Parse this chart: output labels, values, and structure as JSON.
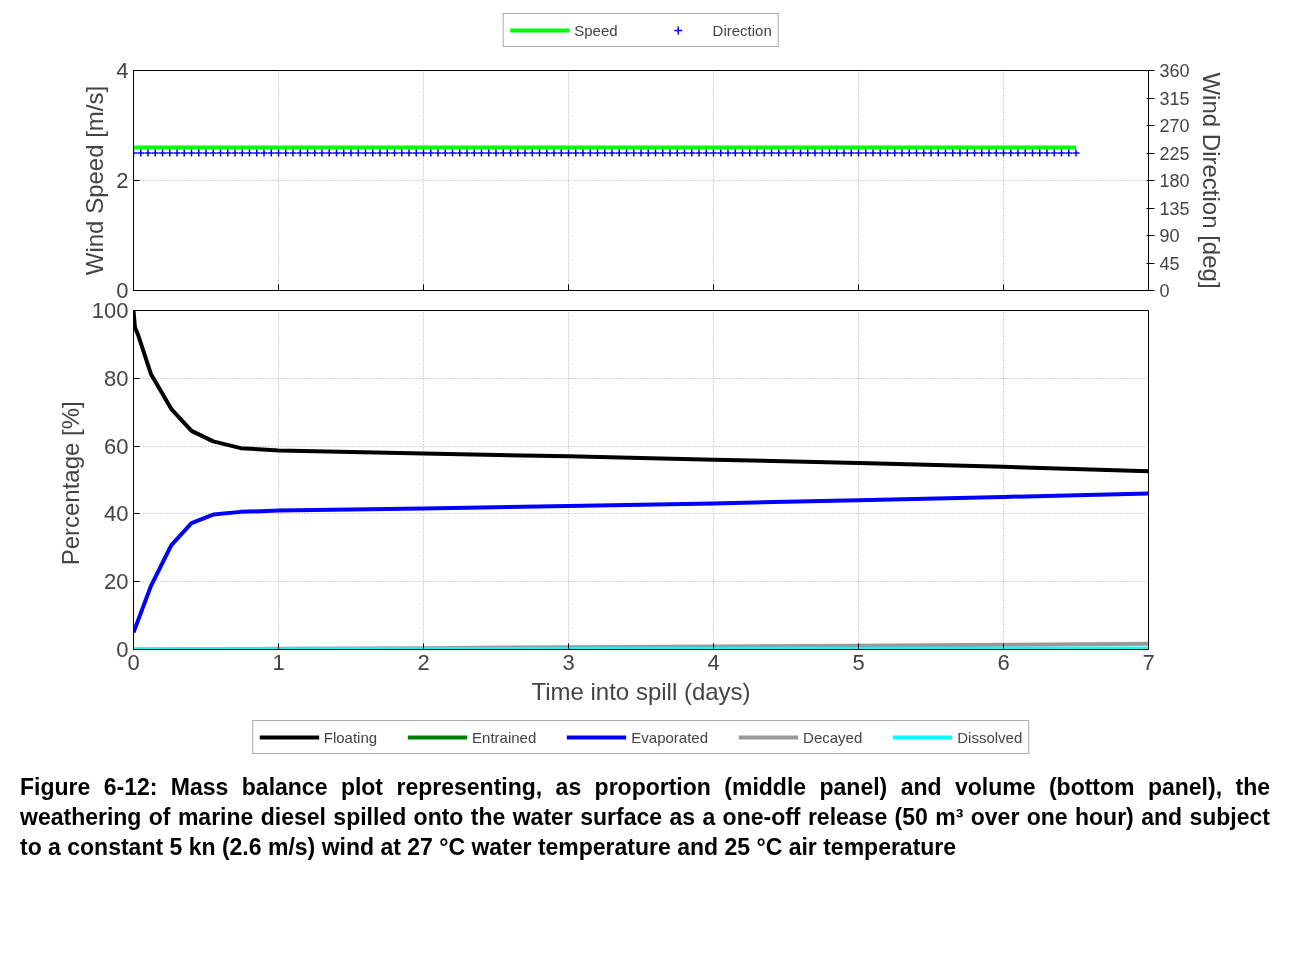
{
  "chart_data": [
    {
      "type": "line",
      "ylabel": "Wind Speed [m/s]",
      "y2label": "Wind Direction [deg]",
      "xlim": [
        0,
        7
      ],
      "xticks": [
        0,
        1,
        2,
        3,
        4,
        5,
        6,
        7
      ],
      "ylim": [
        0,
        4
      ],
      "yticks": [
        0,
        2,
        4
      ],
      "y2lim": [
        0,
        360
      ],
      "y2ticks": [
        0,
        45,
        90,
        135,
        180,
        225,
        270,
        315,
        360
      ],
      "tick_labels": "y",
      "grid": true,
      "legend": "top",
      "series": [
        {
          "name": "Speed",
          "type": "line",
          "color": "#00ff00",
          "x": [
            0,
            6.5
          ],
          "values": [
            2.6,
            2.6
          ]
        },
        {
          "name": "Direction",
          "type": "scatter",
          "marker": "cross",
          "axis": "y2",
          "color": "#0000ff",
          "x": [
            0,
            0.05,
            0.1,
            0.15,
            0.2,
            0.25,
            0.3,
            0.35,
            0.4,
            0.45,
            0.5,
            0.55,
            0.6,
            0.65,
            0.7,
            0.75,
            0.8,
            0.85,
            0.9,
            0.95,
            1,
            1.05,
            1.1,
            1.15,
            1.2,
            1.25,
            1.3,
            1.35,
            1.4,
            1.45,
            1.5,
            1.55,
            1.6,
            1.65,
            1.7,
            1.75,
            1.8,
            1.85,
            1.9,
            1.95,
            2,
            2.05,
            2.1,
            2.15,
            2.2,
            2.25,
            2.3,
            2.35,
            2.4,
            2.45,
            2.5,
            2.55,
            2.6,
            2.65,
            2.7,
            2.75,
            2.8,
            2.85,
            2.9,
            2.95,
            3,
            3.05,
            3.1,
            3.15,
            3.2,
            3.25,
            3.3,
            3.35,
            3.4,
            3.45,
            3.5,
            3.55,
            3.6,
            3.65,
            3.7,
            3.75,
            3.8,
            3.85,
            3.9,
            3.95,
            4,
            4.05,
            4.1,
            4.15,
            4.2,
            4.25,
            4.3,
            4.35,
            4.4,
            4.45,
            4.5,
            4.55,
            4.6,
            4.65,
            4.7,
            4.75,
            4.8,
            4.85,
            4.9,
            4.95,
            5,
            5.05,
            5.1,
            5.15,
            5.2,
            5.25,
            5.3,
            5.35,
            5.4,
            5.45,
            5.5,
            5.55,
            5.6,
            5.65,
            5.7,
            5.75,
            5.8,
            5.85,
            5.9,
            5.95,
            6,
            6.05,
            6.1,
            6.15,
            6.2,
            6.25,
            6.3,
            6.35,
            6.4,
            6.45,
            6.5
          ],
          "values": [
            225,
            225,
            225,
            225,
            225,
            225,
            225,
            225,
            225,
            225,
            225,
            225,
            225,
            225,
            225,
            225,
            225,
            225,
            225,
            225,
            225,
            225,
            225,
            225,
            225,
            225,
            225,
            225,
            225,
            225,
            225,
            225,
            225,
            225,
            225,
            225,
            225,
            225,
            225,
            225,
            225,
            225,
            225,
            225,
            225,
            225,
            225,
            225,
            225,
            225,
            225,
            225,
            225,
            225,
            225,
            225,
            225,
            225,
            225,
            225,
            225,
            225,
            225,
            225,
            225,
            225,
            225,
            225,
            225,
            225,
            225,
            225,
            225,
            225,
            225,
            225,
            225,
            225,
            225,
            225,
            225,
            225,
            225,
            225,
            225,
            225,
            225,
            225,
            225,
            225,
            225,
            225,
            225,
            225,
            225,
            225,
            225,
            225,
            225,
            225,
            225,
            225,
            225,
            225,
            225,
            225,
            225,
            225,
            225,
            225,
            225,
            225,
            225,
            225,
            225,
            225,
            225,
            225,
            225,
            225,
            225,
            225,
            225,
            225,
            225,
            225,
            225,
            225,
            225,
            225,
            225
          ]
        }
      ]
    },
    {
      "type": "line",
      "xlabel": "Time into spill (days)",
      "ylabel": "Percentage  [%]",
      "xlim": [
        0,
        7
      ],
      "xticks": [
        0,
        1,
        2,
        3,
        4,
        5,
        6,
        7
      ],
      "ylim": [
        0,
        100
      ],
      "yticks": [
        0,
        20,
        40,
        60,
        80,
        100
      ],
      "grid": true,
      "legend": "bottom",
      "annotations": [
        "Figure 6-12: Mass balance plot representing, as proportion (middle panel) and volume (bottom panel), the weathering of marine diesel spilled onto the water surface as a one-off release (50 m³ over one hour) and subject to a constant 5 kn (2.6 m/s) wind at 27 °C water temperature and 25 °C air temperature"
      ],
      "series": [
        {
          "name": "Floating",
          "color": "#000000",
          "x": [
            0,
            0.01,
            0.03,
            0.12,
            0.26,
            0.4,
            0.55,
            0.74,
            1,
            2,
            3,
            4,
            5,
            6,
            7
          ],
          "values": [
            100,
            95,
            93,
            81.3,
            71,
            64.5,
            61.4,
            59.4,
            58.7,
            57.8,
            57,
            56,
            55,
            53.9,
            52.6
          ]
        },
        {
          "name": "Entrained",
          "color": "#008000",
          "values": [
            null
          ]
        },
        {
          "name": "Evaporated",
          "color": "#0000ff",
          "x": [
            0,
            0.12,
            0.26,
            0.4,
            0.55,
            0.74,
            1,
            2,
            3,
            4,
            5,
            6,
            7
          ],
          "values": [
            5,
            18.7,
            30.7,
            37.3,
            39.8,
            40.6,
            41,
            41.6,
            42.3,
            43.1,
            44,
            45,
            46
          ]
        },
        {
          "name": "Decayed",
          "color": "#999999",
          "x": [
            0,
            1,
            2,
            3,
            4,
            5,
            6,
            7
          ],
          "values": [
            0,
            0.2,
            0.4,
            0.7,
            0.9,
            1.1,
            1.4,
            1.7
          ]
        },
        {
          "name": "Dissolved",
          "color": "#00ffff",
          "x": [
            0,
            1,
            3,
            5,
            7
          ],
          "values": [
            0,
            0.1,
            0.2,
            0.2,
            0.3
          ]
        }
      ]
    }
  ]
}
